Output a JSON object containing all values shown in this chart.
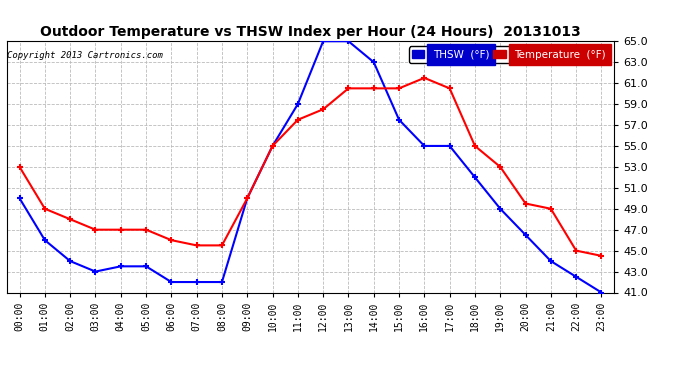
{
  "title": "Outdoor Temperature vs THSW Index per Hour (24 Hours)  20131013",
  "copyright": "Copyright 2013 Cartronics.com",
  "x_labels": [
    "00:00",
    "01:00",
    "02:00",
    "03:00",
    "04:00",
    "05:00",
    "06:00",
    "07:00",
    "08:00",
    "09:00",
    "10:00",
    "11:00",
    "12:00",
    "13:00",
    "14:00",
    "15:00",
    "16:00",
    "17:00",
    "18:00",
    "19:00",
    "20:00",
    "21:00",
    "22:00",
    "23:00"
  ],
  "thsw": [
    50.0,
    46.0,
    44.0,
    43.0,
    43.5,
    43.5,
    42.0,
    42.0,
    42.0,
    50.0,
    55.0,
    59.0,
    65.0,
    65.0,
    63.0,
    57.5,
    55.0,
    55.0,
    52.0,
    49.0,
    46.5,
    44.0,
    42.5,
    41.0
  ],
  "temperature": [
    53.0,
    49.0,
    48.0,
    47.0,
    47.0,
    47.0,
    46.0,
    45.5,
    45.5,
    50.0,
    55.0,
    57.5,
    58.5,
    60.5,
    60.5,
    60.5,
    61.5,
    60.5,
    55.0,
    53.0,
    49.5,
    49.0,
    45.0,
    44.5
  ],
  "ylim": [
    41.0,
    65.0
  ],
  "yticks": [
    41.0,
    43.0,
    45.0,
    47.0,
    49.0,
    51.0,
    53.0,
    55.0,
    57.0,
    59.0,
    61.0,
    63.0,
    65.0
  ],
  "thsw_color": "#0000ff",
  "temp_color": "#ff0000",
  "bg_color": "#ffffff",
  "grid_color": "#bbbbbb",
  "legend_thsw_bg": "#0000cc",
  "legend_temp_bg": "#cc0000"
}
